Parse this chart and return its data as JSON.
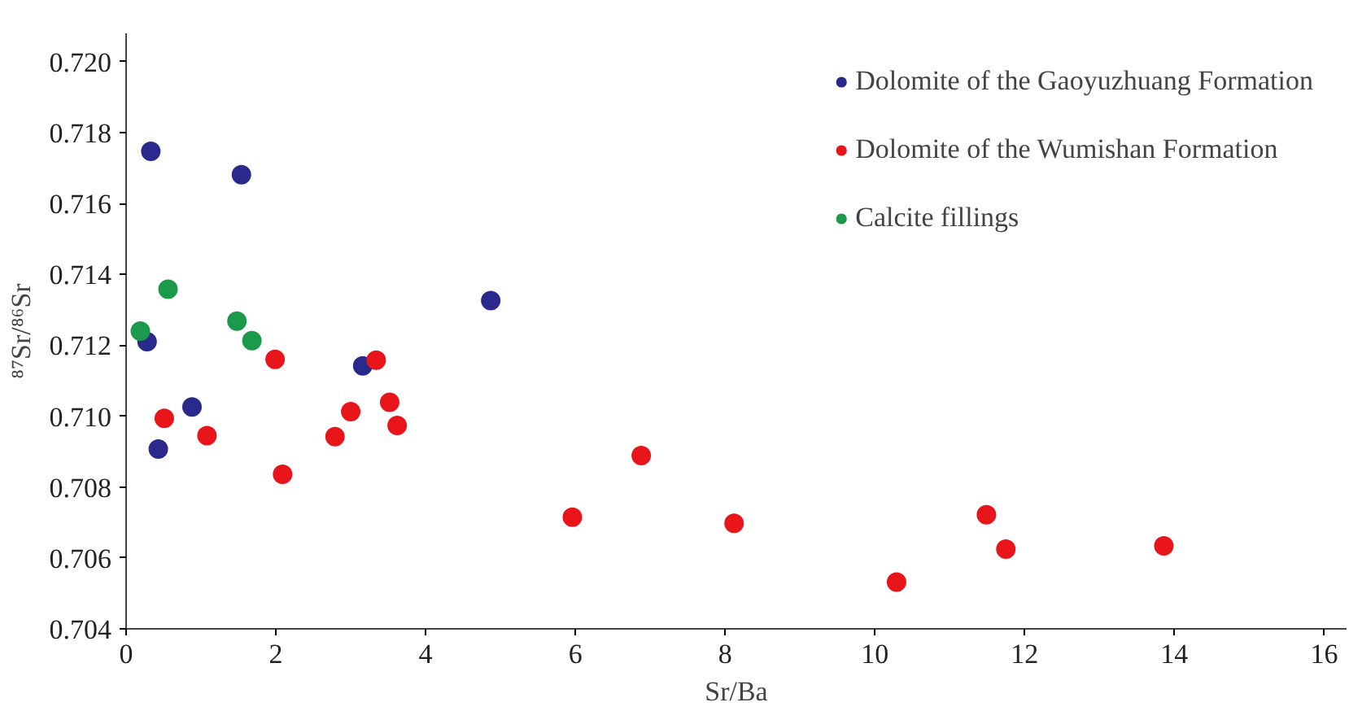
{
  "chart_data": {
    "type": "scatter",
    "xlabel": "Sr/Ba",
    "ylabel": "⁸⁷Sr/⁸⁶Sr",
    "xlim": [
      0,
      16.3
    ],
    "ylim": [
      0.704,
      0.7208
    ],
    "xticks": [
      0,
      2,
      4,
      6,
      8,
      10,
      12,
      14,
      16
    ],
    "yticks": [
      {
        "value": 0.704,
        "label": "0.704"
      },
      {
        "value": 0.706,
        "label": "0.706"
      },
      {
        "value": 0.708,
        "label": "0.708"
      },
      {
        "value": 0.71,
        "label": "0.710"
      },
      {
        "value": 0.712,
        "label": "0.712"
      },
      {
        "value": 0.714,
        "label": "0.714"
      },
      {
        "value": 0.716,
        "label": "0.716"
      },
      {
        "value": 0.718,
        "label": "0.718"
      },
      {
        "value": 0.72,
        "label": "0.720"
      }
    ],
    "marker": "circle",
    "legend": "top right",
    "grid": false,
    "series": [
      {
        "name": "Dolomite of the Gaoyuzhuang Formation",
        "color": "#2a2a8c",
        "x": [
          0.33,
          1.54,
          4.87,
          0.28,
          3.16,
          0.88,
          0.43
        ],
        "values": [
          0.71747,
          0.71681,
          0.71326,
          0.7121,
          0.71142,
          0.71026,
          0.70907
        ]
      },
      {
        "name": "Dolomite of the Wumishan Formation",
        "color": "#e8151b",
        "x": [
          1.99,
          3.34,
          3.52,
          3.0,
          3.62,
          0.51,
          1.08,
          2.79,
          2.09,
          6.88,
          5.96,
          8.12,
          11.49,
          11.75,
          13.86,
          10.29
        ],
        "values": [
          0.7116,
          0.71158,
          0.71039,
          0.71013,
          0.70974,
          0.70994,
          0.70945,
          0.70942,
          0.70836,
          0.70889,
          0.70715,
          0.70698,
          0.70722,
          0.70625,
          0.70634,
          0.70532
        ]
      },
      {
        "name": "Calcite fillings",
        "color": "#1a9a4a",
        "x": [
          0.56,
          0.19,
          1.48,
          1.68
        ],
        "values": [
          0.71358,
          0.7124,
          0.71268,
          0.71213
        ]
      }
    ]
  }
}
